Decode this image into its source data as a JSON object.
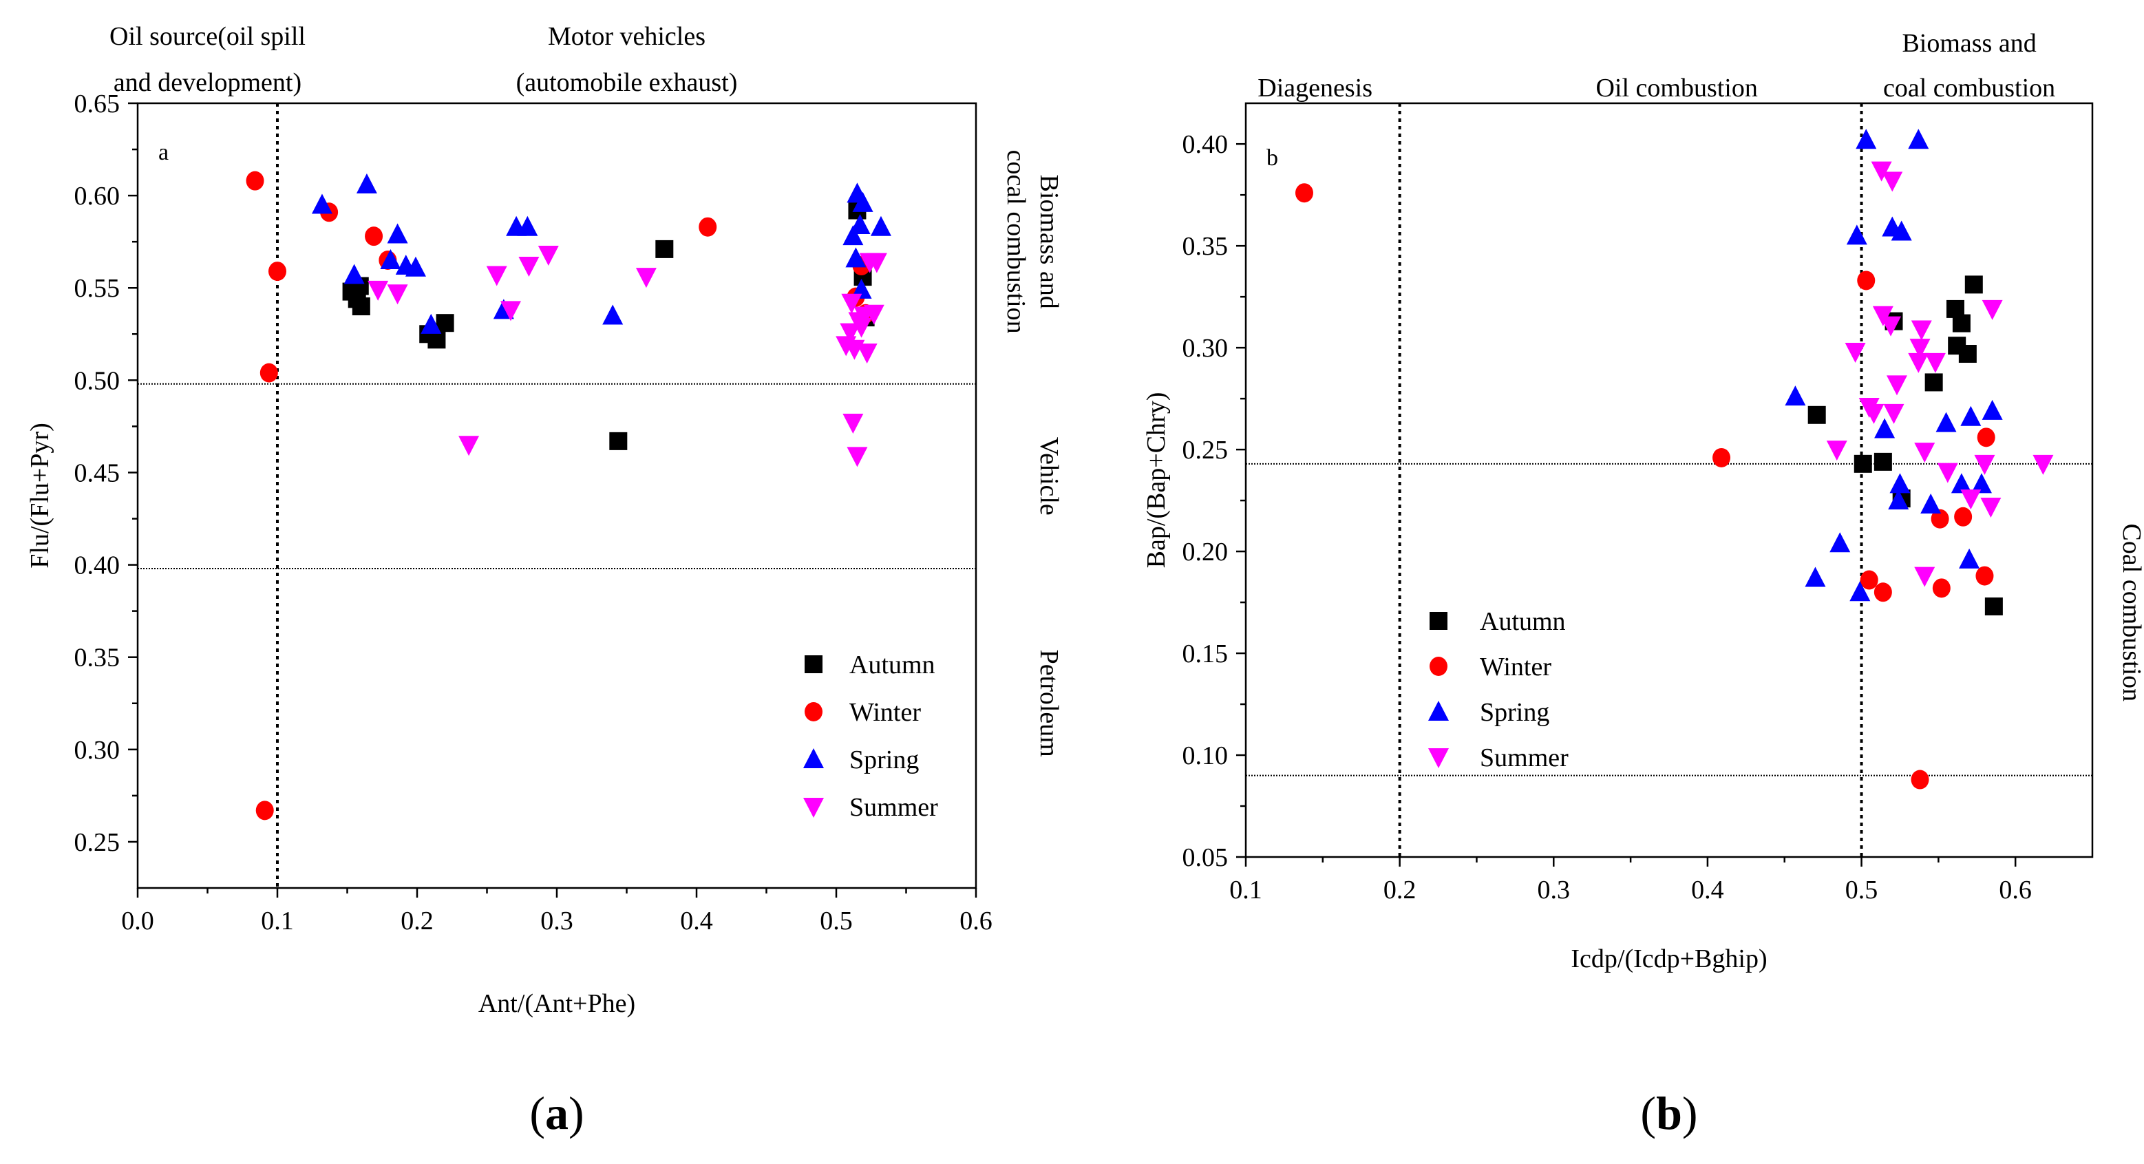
{
  "chart_data": [
    {
      "type": "scatter",
      "panel_label": "a",
      "caption": {
        "open": "(",
        "letter": "a",
        "close": ")"
      },
      "xlabel": "Ant/(Ant+Phe)",
      "ylabel": "Flu/(Flu+Pyr)",
      "xlim": [
        0.0,
        0.6
      ],
      "ylim": [
        0.225,
        0.65
      ],
      "x_ticks": [
        "0.0",
        "0.1",
        "0.2",
        "0.3",
        "0.4",
        "0.5",
        "0.6"
      ],
      "y_ticks": [
        "0.25",
        "0.30",
        "0.35",
        "0.40",
        "0.45",
        "0.50",
        "0.55",
        "0.60",
        "0.65"
      ],
      "x_tick_values": [
        0.0,
        0.1,
        0.2,
        0.3,
        0.4,
        0.5,
        0.6
      ],
      "y_tick_values": [
        0.25,
        0.3,
        0.35,
        0.4,
        0.45,
        0.5,
        0.55,
        0.6,
        0.65
      ],
      "vlines": [
        0.1
      ],
      "hlines": [
        0.498,
        0.398
      ],
      "top_annotations": [
        {
          "lines": [
            "Oil source(oil spill",
            "and development)"
          ],
          "x": 0.05
        },
        {
          "lines": [
            "Motor vehicles",
            "(automobile exhaust)"
          ],
          "x": 0.35
        }
      ],
      "right_annotations": [
        {
          "lines": [
            "Biomass and",
            "cocal combustion"
          ],
          "y": 0.575
        },
        {
          "lines": [
            "Vehicle"
          ],
          "y": 0.448
        },
        {
          "lines": [
            "Petroleum"
          ],
          "y": 0.325
        }
      ],
      "legend": {
        "position": "lower-right",
        "entries": [
          "Autumn",
          "Winter",
          "Spring",
          "Summer"
        ]
      },
      "series": [
        {
          "name": "Autumn",
          "marker": "square",
          "color": "#000000",
          "points": [
            [
              0.153,
              0.548
            ],
            [
              0.157,
              0.544
            ],
            [
              0.16,
              0.54
            ],
            [
              0.159,
              0.551
            ],
            [
              0.208,
              0.525
            ],
            [
              0.214,
              0.522
            ],
            [
              0.22,
              0.531
            ],
            [
              0.344,
              0.467
            ],
            [
              0.377,
              0.571
            ],
            [
              0.515,
              0.592
            ],
            [
              0.519,
              0.556
            ],
            [
              0.521,
              0.534
            ]
          ]
        },
        {
          "name": "Winter",
          "marker": "circle",
          "color": "#ff0000",
          "points": [
            [
              0.084,
              0.608
            ],
            [
              0.091,
              0.267
            ],
            [
              0.094,
              0.504
            ],
            [
              0.1,
              0.559
            ],
            [
              0.137,
              0.591
            ],
            [
              0.169,
              0.578
            ],
            [
              0.179,
              0.565
            ],
            [
              0.408,
              0.583
            ],
            [
              0.514,
              0.545
            ],
            [
              0.518,
              0.562
            ],
            [
              0.521,
              0.536
            ]
          ]
        },
        {
          "name": "Spring",
          "marker": "triangle-up",
          "color": "#0000ff",
          "points": [
            [
              0.132,
              0.595
            ],
            [
              0.155,
              0.557
            ],
            [
              0.164,
              0.606
            ],
            [
              0.181,
              0.565
            ],
            [
              0.186,
              0.579
            ],
            [
              0.192,
              0.562
            ],
            [
              0.199,
              0.561
            ],
            [
              0.21,
              0.53
            ],
            [
              0.262,
              0.538
            ],
            [
              0.271,
              0.583
            ],
            [
              0.279,
              0.583
            ],
            [
              0.34,
              0.535
            ],
            [
              0.512,
              0.578
            ],
            [
              0.514,
              0.566
            ],
            [
              0.515,
              0.601
            ],
            [
              0.517,
              0.584
            ],
            [
              0.519,
              0.596
            ],
            [
              0.532,
              0.583
            ],
            [
              0.518,
              0.549
            ]
          ]
        },
        {
          "name": "Summer",
          "marker": "triangle-down",
          "color": "#ff00ff",
          "points": [
            [
              0.172,
              0.549
            ],
            [
              0.186,
              0.547
            ],
            [
              0.237,
              0.465
            ],
            [
              0.257,
              0.557
            ],
            [
              0.267,
              0.538
            ],
            [
              0.28,
              0.562
            ],
            [
              0.294,
              0.568
            ],
            [
              0.364,
              0.556
            ],
            [
              0.507,
              0.519
            ],
            [
              0.51,
              0.526
            ],
            [
              0.511,
              0.542
            ],
            [
              0.512,
              0.477
            ],
            [
              0.513,
              0.517
            ],
            [
              0.515,
              0.459
            ],
            [
              0.516,
              0.532
            ],
            [
              0.518,
              0.529
            ],
            [
              0.52,
              0.535
            ],
            [
              0.522,
              0.515
            ],
            [
              0.524,
              0.564
            ],
            [
              0.527,
              0.536
            ],
            [
              0.529,
              0.564
            ]
          ]
        }
      ]
    },
    {
      "type": "scatter",
      "panel_label": "b",
      "caption": {
        "open": "(",
        "letter": "b",
        "close": ")"
      },
      "xlabel": "Icdp/(Icdp+Bghip)",
      "ylabel": "Bap/(Bap+Chry)",
      "xlim": [
        0.1,
        0.65
      ],
      "ylim": [
        0.05,
        0.42
      ],
      "x_ticks": [
        "0.1",
        "0.2",
        "0.3",
        "0.4",
        "0.5",
        "0.6"
      ],
      "y_ticks": [
        "0.05",
        "0.10",
        "0.15",
        "0.20",
        "0.25",
        "0.30",
        "0.35",
        "0.40"
      ],
      "x_tick_values": [
        0.1,
        0.2,
        0.3,
        0.4,
        0.5,
        0.6
      ],
      "y_tick_values": [
        0.05,
        0.1,
        0.15,
        0.2,
        0.25,
        0.3,
        0.35,
        0.4
      ],
      "vlines": [
        0.2,
        0.5
      ],
      "hlines": [
        0.243,
        0.09
      ],
      "top_annotations": [
        {
          "lines": [
            "Diagenesis"
          ],
          "x": 0.145
        },
        {
          "lines": [
            "Oil combustion"
          ],
          "x": 0.38
        },
        {
          "lines": [
            "Biomass and",
            "coal combustion"
          ],
          "x": 0.57
        }
      ],
      "right_annotations": [
        {
          "lines": [
            "Coal combustion"
          ],
          "y": 0.17
        }
      ],
      "legend": {
        "position": "lower-left",
        "entries": [
          "Autumn",
          "Winter",
          "Spring",
          "Summer"
        ]
      },
      "series": [
        {
          "name": "Autumn",
          "marker": "square",
          "color": "#000000",
          "points": [
            [
              0.471,
              0.267
            ],
            [
              0.501,
              0.243
            ],
            [
              0.514,
              0.244
            ],
            [
              0.521,
              0.313
            ],
            [
              0.526,
              0.226
            ],
            [
              0.547,
              0.283
            ],
            [
              0.561,
              0.319
            ],
            [
              0.562,
              0.301
            ],
            [
              0.565,
              0.312
            ],
            [
              0.569,
              0.297
            ],
            [
              0.573,
              0.331
            ],
            [
              0.586,
              0.173
            ]
          ]
        },
        {
          "name": "Winter",
          "marker": "circle",
          "color": "#ff0000",
          "points": [
            [
              0.138,
              0.376
            ],
            [
              0.409,
              0.246
            ],
            [
              0.503,
              0.333
            ],
            [
              0.505,
              0.186
            ],
            [
              0.514,
              0.18
            ],
            [
              0.538,
              0.088
            ],
            [
              0.551,
              0.216
            ],
            [
              0.552,
              0.182
            ],
            [
              0.566,
              0.217
            ],
            [
              0.58,
              0.188
            ],
            [
              0.581,
              0.256
            ]
          ]
        },
        {
          "name": "Spring",
          "marker": "triangle-up",
          "color": "#0000ff",
          "points": [
            [
              0.457,
              0.276
            ],
            [
              0.47,
              0.187
            ],
            [
              0.486,
              0.204
            ],
            [
              0.497,
              0.355
            ],
            [
              0.499,
              0.18
            ],
            [
              0.503,
              0.402
            ],
            [
              0.515,
              0.26
            ],
            [
              0.52,
              0.359
            ],
            [
              0.524,
              0.225
            ],
            [
              0.525,
              0.233
            ],
            [
              0.526,
              0.357
            ],
            [
              0.537,
              0.402
            ],
            [
              0.545,
              0.223
            ],
            [
              0.555,
              0.263
            ],
            [
              0.565,
              0.233
            ],
            [
              0.57,
              0.196
            ],
            [
              0.571,
              0.266
            ],
            [
              0.578,
              0.233
            ],
            [
              0.585,
              0.269
            ]
          ]
        },
        {
          "name": "Summer",
          "marker": "triangle-down",
          "color": "#ff00ff",
          "points": [
            [
              0.484,
              0.25
            ],
            [
              0.496,
              0.298
            ],
            [
              0.505,
              0.271
            ],
            [
              0.508,
              0.268
            ],
            [
              0.513,
              0.387
            ],
            [
              0.514,
              0.316
            ],
            [
              0.519,
              0.311
            ],
            [
              0.52,
              0.382
            ],
            [
              0.521,
              0.268
            ],
            [
              0.523,
              0.282
            ],
            [
              0.537,
              0.293
            ],
            [
              0.538,
              0.3
            ],
            [
              0.539,
              0.309
            ],
            [
              0.541,
              0.188
            ],
            [
              0.541,
              0.249
            ],
            [
              0.548,
              0.293
            ],
            [
              0.556,
              0.239
            ],
            [
              0.571,
              0.226
            ],
            [
              0.58,
              0.243
            ],
            [
              0.584,
              0.222
            ],
            [
              0.585,
              0.319
            ],
            [
              0.618,
              0.243
            ]
          ]
        }
      ]
    }
  ]
}
